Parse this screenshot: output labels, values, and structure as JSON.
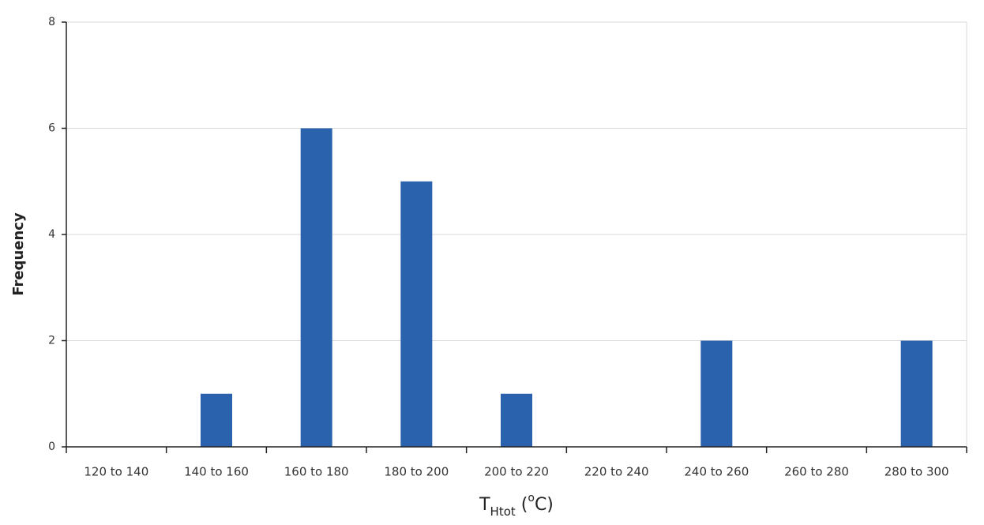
{
  "chart_data": {
    "type": "bar",
    "ylabel": "Frequency",
    "xlabel": [
      "T",
      "Htot",
      " (",
      "o",
      "C)"
    ],
    "categories": [
      "120 to 140",
      "140 to 160",
      "160 to 180",
      "180 to 200",
      "200 to 220",
      "220 to 240",
      "240 to 260",
      "260 to 280",
      "280 to 300"
    ],
    "values": [
      0,
      1,
      6,
      5,
      1,
      0,
      2,
      0,
      2
    ],
    "color": "#2b62ad",
    "ylim": [
      0,
      8
    ],
    "yticks": [
      0,
      2,
      4,
      6,
      8
    ],
    "grid": true
  }
}
